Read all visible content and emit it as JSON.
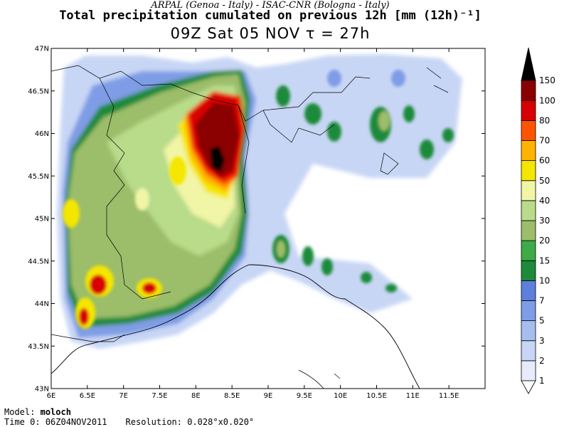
{
  "header": {
    "subtitle": "ARPAL (Genoa - Italy)  -  ISAC-CNR (Bologna - Italy)",
    "title": "Total precipitation cumulated on previous 12h [mm (12h)⁻¹]",
    "datetime": "09Z Sat 05 NOV  τ = 27h"
  },
  "map": {
    "lon_range": [
      6,
      12
    ],
    "lat_range": [
      43,
      47
    ],
    "lon_ticks": [
      "6E",
      "6.5E",
      "7E",
      "7.5E",
      "8E",
      "8.5E",
      "9E",
      "9.5E",
      "10E",
      "10.5E",
      "11E",
      "11.5E"
    ],
    "lat_ticks": [
      "43N",
      "43.5N",
      "44N",
      "44.5N",
      "45N",
      "45.5N",
      "46N",
      "46.5N",
      "47N"
    ]
  },
  "colorbar": {
    "levels": [
      "1",
      "2",
      "3",
      "5",
      "7",
      "10",
      "15",
      "20",
      "30",
      "40",
      "50",
      "60",
      "70",
      "80",
      "100",
      "150"
    ],
    "colors": [
      "#e6ecfb",
      "#c8d6f5",
      "#a7bdef",
      "#7f9de6",
      "#5e7fdc",
      "#1f8a3a",
      "#3cab48",
      "#9cbd6a",
      "#b8dc8a",
      "#f1f5a6",
      "#f5e600",
      "#ffb300",
      "#ff5500",
      "#d80000",
      "#8b0000",
      "#000000"
    ]
  },
  "footer": {
    "model_label": "Model:",
    "model_value": "moloch",
    "time0_label": "Time 0:",
    "time0_value": "06Z04NOV2011",
    "resolution_label": "Resolution:",
    "resolution_value": "0.028°x0.020°"
  }
}
